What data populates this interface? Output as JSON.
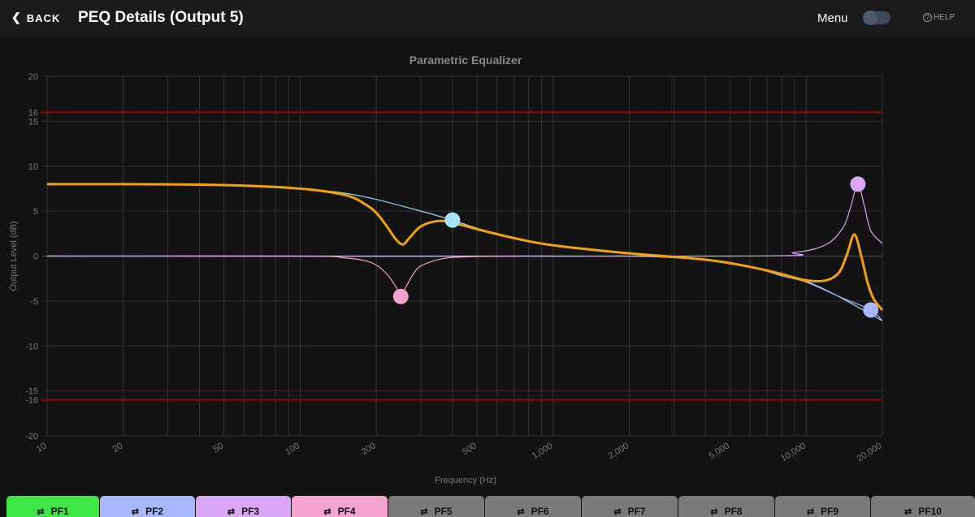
{
  "header": {
    "back_label": "BACK",
    "title": "PEQ Details (Output 5)",
    "menu_label": "Menu",
    "menu_toggle_on": false,
    "help_label": "HELP"
  },
  "chart_data": {
    "type": "line",
    "title": "Parametric Equalizer",
    "xlabel": "Frequency (Hz)",
    "ylabel": "Output Level (dB)",
    "xscale": "log",
    "xlim": [
      10,
      20000
    ],
    "ylim": [
      -20,
      20
    ],
    "xticks": [
      10,
      20,
      50,
      100,
      200,
      500,
      1000,
      2000,
      5000,
      10000,
      20000
    ],
    "xtick_labels": [
      "10",
      "20",
      "50",
      "100",
      "200",
      "500",
      "1,000",
      "2,000",
      "5,000",
      "10,000",
      "20,000"
    ],
    "yticks": [
      20,
      16,
      15,
      10,
      5,
      0,
      -5,
      -10,
      -15,
      -16,
      -20
    ],
    "limit_lines": [
      16,
      -16
    ],
    "limit_color": "#7a0a0a",
    "grid": true,
    "series": [
      {
        "name": "",
        "color": "#8fd3f2",
        "x": [
          10,
          20,
          50,
          100,
          150,
          200,
          300,
          400,
          500,
          700,
          1000,
          2000,
          5000,
          10000,
          20000
        ],
        "y": [
          8,
          8,
          7.9,
          7.5,
          7,
          6.3,
          5,
          4,
          3.1,
          2,
          1.2,
          0.3,
          -0.8,
          -2.8,
          -7.2
        ]
      },
      {
        "name": "",
        "color": "#a6b8ff",
        "x": [
          10,
          1000,
          2000,
          4000,
          6000,
          8000,
          10000,
          14000,
          18000,
          20000
        ],
        "y": [
          0,
          0,
          0,
          -0.4,
          -1.2,
          -2.2,
          -2.9,
          -4.7,
          -6,
          -7.2
        ]
      },
      {
        "name": "",
        "color": "#d9a6f2",
        "x": [
          10,
          5000,
          9000,
          12000,
          14000,
          15000,
          16000,
          17000,
          18000,
          20000
        ],
        "y": [
          0,
          0,
          0.4,
          1.3,
          3.2,
          5.5,
          8,
          5.5,
          2.8,
          1.4
        ]
      },
      {
        "name": "",
        "color": "#f0a0c8",
        "x": [
          10,
          100,
          150,
          180,
          200,
          220,
          240,
          250,
          260,
          280,
          300,
          350,
          400,
          500,
          700,
          1000
        ],
        "y": [
          0,
          0,
          -0.2,
          -0.5,
          -1,
          -2,
          -3.5,
          -4.5,
          -3.6,
          -2,
          -1.1,
          -0.4,
          -0.15,
          -0.05,
          0,
          0
        ]
      },
      {
        "name": "",
        "color": "#f2a20a",
        "x": [
          10,
          20,
          50,
          100,
          150,
          180,
          200,
          220,
          240,
          255,
          270,
          300,
          350,
          400,
          500,
          700,
          1000,
          2000,
          4000,
          6000,
          8000,
          10000,
          12000,
          13500,
          14500,
          15500,
          16500,
          17500,
          18500,
          20000
        ],
        "y": [
          8,
          8,
          7.9,
          7.5,
          6.8,
          5.8,
          4.8,
          3.3,
          1.8,
          1.3,
          2,
          3.3,
          3.9,
          3.7,
          3.0,
          2.0,
          1.2,
          0.3,
          -0.4,
          -1.2,
          -2.0,
          -2.7,
          -2.7,
          -1.8,
          0.2,
          2.4,
          0,
          -3,
          -4.8,
          -6
        ]
      }
    ],
    "handles": [
      {
        "color": "#a6e3fa",
        "x": 400,
        "y": 4
      },
      {
        "color": "#a6b8ff",
        "x": 18000,
        "y": -6
      },
      {
        "color": "#dca6f7",
        "x": 16000,
        "y": 8
      },
      {
        "color": "#f4a3cf",
        "x": 250,
        "y": -4.5
      }
    ]
  },
  "tabs": [
    {
      "label": "PF1",
      "color": "#3ee645"
    },
    {
      "label": "PF2",
      "color": "#a6b8ff"
    },
    {
      "label": "PF3",
      "color": "#dca6f7"
    },
    {
      "label": "PF4",
      "color": "#f4a3cf"
    },
    {
      "label": "PF5",
      "color": "#7a7a7a"
    },
    {
      "label": "PF6",
      "color": "#7a7a7a"
    },
    {
      "label": "PF7",
      "color": "#7a7a7a"
    },
    {
      "label": "PF8",
      "color": "#7a7a7a"
    },
    {
      "label": "PF9",
      "color": "#7a7a7a"
    },
    {
      "label": "PF10",
      "color": "#7a7a7a"
    }
  ]
}
